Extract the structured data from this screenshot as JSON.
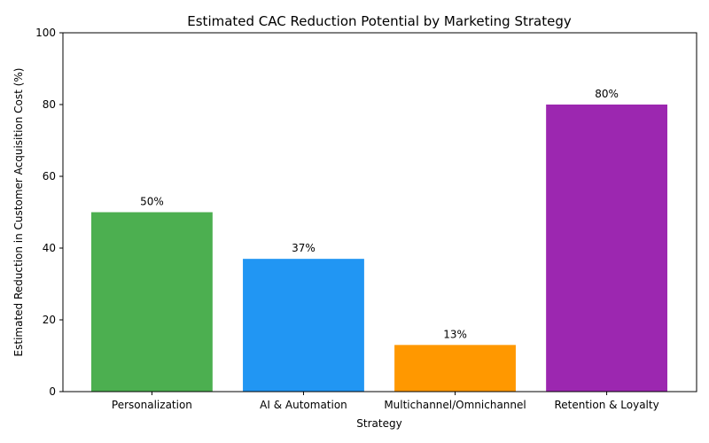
{
  "chart_data": {
    "type": "bar",
    "title": "Estimated CAC Reduction Potential by Marketing Strategy",
    "xlabel": "Strategy",
    "ylabel": "Estimated Reduction in Customer Acquisition Cost (%)",
    "categories": [
      "Personalization",
      "AI & Automation",
      "Multichannel/Omnichannel",
      "Retention & Loyalty"
    ],
    "values": [
      50,
      37,
      13,
      80
    ],
    "data_labels": [
      "50%",
      "37%",
      "13%",
      "80%"
    ],
    "colors": [
      "#4caf50",
      "#2196f3",
      "#ff9800",
      "#9c27b0"
    ],
    "ylim": [
      0,
      100
    ],
    "yticks": [
      0,
      20,
      40,
      60,
      80,
      100
    ],
    "grid": false,
    "legend": "none"
  }
}
